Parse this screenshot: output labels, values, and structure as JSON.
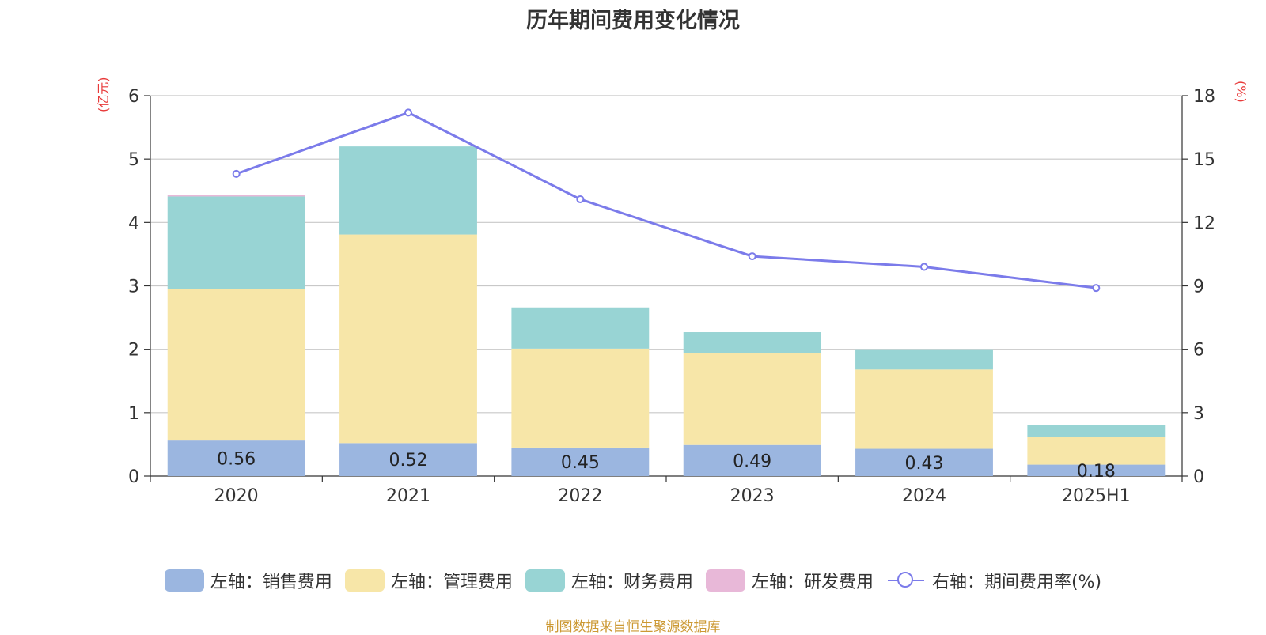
{
  "chart_data": {
    "type": "bar",
    "title": "历年期间费用变化情况",
    "left_unit": "(亿元)",
    "right_unit": "(%)",
    "categories": [
      "2020",
      "2021",
      "2022",
      "2023",
      "2024",
      "2025H1"
    ],
    "left_axis": {
      "min": 0,
      "max": 6,
      "ticks": [
        "0",
        "1",
        "2",
        "3",
        "4",
        "5",
        "6"
      ]
    },
    "right_axis": {
      "min": 0,
      "max": 18,
      "ticks": [
        "0",
        "3",
        "6",
        "9",
        "12",
        "15",
        "18"
      ]
    },
    "stacked": true,
    "grid": true,
    "legend_position": "bottom",
    "series": [
      {
        "name": "左轴：销售费用",
        "axis": "left",
        "color": "#9bb6e0",
        "values": [
          0.56,
          0.52,
          0.45,
          0.49,
          0.43,
          0.18
        ],
        "labels": [
          "0.56",
          "0.52",
          "0.45",
          "0.49",
          "0.43",
          "0.18"
        ]
      },
      {
        "name": "左轴：管理费用",
        "axis": "left",
        "color": "#f7e6a8",
        "values": [
          2.39,
          3.29,
          1.56,
          1.45,
          1.25,
          0.44
        ]
      },
      {
        "name": "左轴：财务费用",
        "axis": "left",
        "color": "#98d4d4",
        "values": [
          1.46,
          1.39,
          0.65,
          0.33,
          0.32,
          0.19
        ]
      },
      {
        "name": "左轴：研发费用",
        "axis": "left",
        "color": "#e8b8d8",
        "values": [
          0.02,
          0.0,
          0.0,
          0.0,
          0.0,
          0.0
        ]
      },
      {
        "name": "右轴：期间费用率(%)",
        "axis": "right",
        "type": "line",
        "color": "#7b7bea",
        "values": [
          14.3,
          17.2,
          13.1,
          10.4,
          9.9,
          8.9
        ]
      }
    ]
  },
  "source_note": "制图数据来自恒生聚源数据库"
}
